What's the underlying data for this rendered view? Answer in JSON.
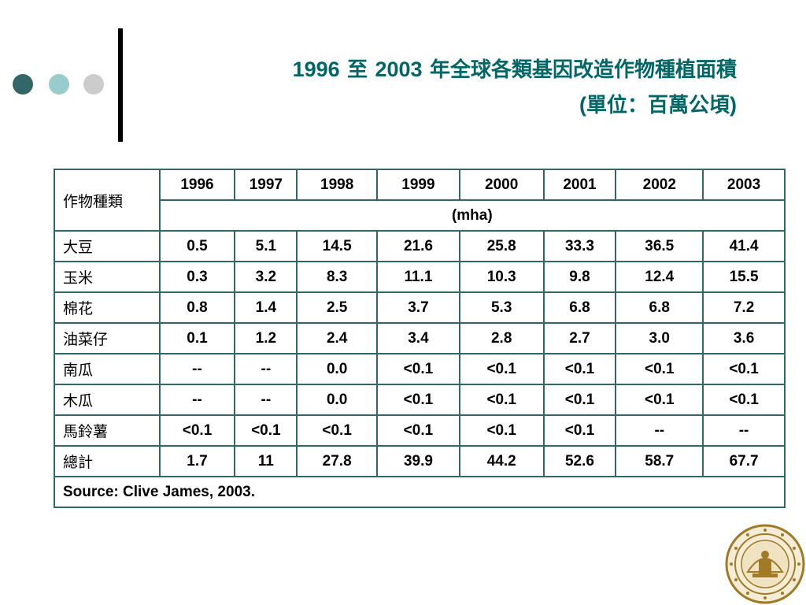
{
  "slide": {
    "title_year_start": "1996",
    "title_to": "至",
    "title_year_end": "2003",
    "title_rest": "年全球各類基因改造作物種植面積",
    "subtitle_open": "(",
    "subtitle_text": "單位：百萬公頃",
    "subtitle_close": ")"
  },
  "table": {
    "corner_label": "作物種類",
    "years": [
      "1996",
      "1997",
      "1998",
      "1999",
      "2000",
      "2001",
      "2002",
      "2003"
    ],
    "unit": "(mha)",
    "rows": [
      {
        "crop": "大豆",
        "values": [
          "0.5",
          "5.1",
          "14.5",
          "21.6",
          "25.8",
          "33.3",
          "36.5",
          "41.4"
        ]
      },
      {
        "crop": "玉米",
        "values": [
          "0.3",
          "3.2",
          "8.3",
          "11.1",
          "10.3",
          "9.8",
          "12.4",
          "15.5"
        ]
      },
      {
        "crop": "棉花",
        "values": [
          "0.8",
          "1.4",
          "2.5",
          "3.7",
          "5.3",
          "6.8",
          "6.8",
          "7.2"
        ]
      },
      {
        "crop": "油菜仔",
        "values": [
          "0.1",
          "1.2",
          "2.4",
          "3.4",
          "2.8",
          "2.7",
          "3.0",
          "3.6"
        ]
      },
      {
        "crop": "南瓜",
        "values": [
          "--",
          "--",
          "0.0",
          "<0.1",
          "<0.1",
          "<0.1",
          "<0.1",
          "<0.1"
        ]
      },
      {
        "crop": "木瓜",
        "values": [
          "--",
          "--",
          "0.0",
          "<0.1",
          "<0.1",
          "<0.1",
          "<0.1",
          "<0.1"
        ]
      },
      {
        "crop": "馬鈴薯",
        "values": [
          "<0.1",
          "<0.1",
          "<0.1",
          "<0.1",
          "<0.1",
          "<0.1",
          "--",
          "--"
        ]
      },
      {
        "crop": "總計",
        "values": [
          "1.7",
          "11",
          "27.8",
          "39.9",
          "44.2",
          "52.6",
          "58.7",
          "67.7"
        ]
      }
    ],
    "source": "Source: Clive James, 2003."
  },
  "colors": {
    "title": "#006666",
    "table_border": "#336666",
    "dot_dark": "#336666",
    "dot_light": "#99cccc",
    "dot_gray": "#cccccc",
    "seal": "#a07a28"
  },
  "icons": {
    "decor_dots": "three-dots-icon",
    "seal": "university-seal-icon"
  }
}
